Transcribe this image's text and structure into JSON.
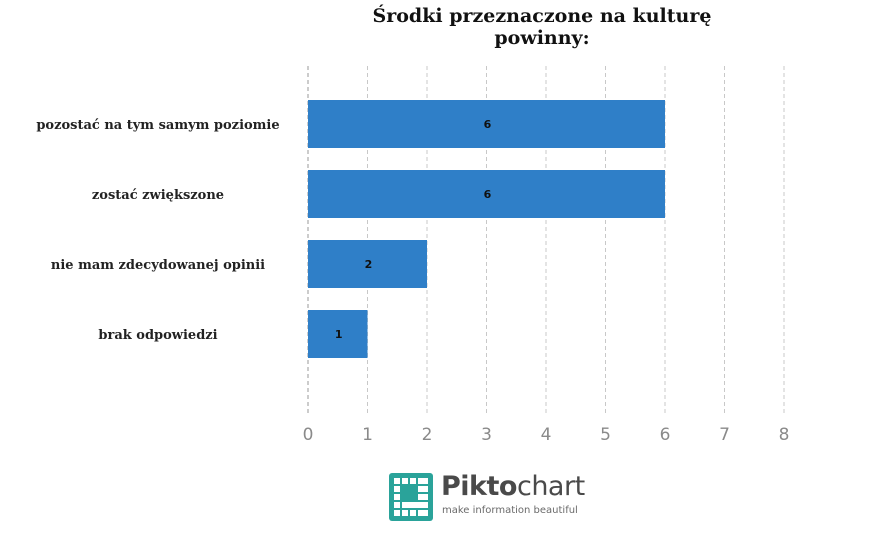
{
  "chart_data": {
    "type": "bar",
    "orientation": "horizontal",
    "title": "Środki przeznaczone na kulturę powinny:",
    "title_lines": [
      "Środki przeznaczone na kulturę",
      "powinny:"
    ],
    "categories": [
      "pozostać na tym samym poziomie",
      "zostać zwiększone",
      "nie mam zdecydowanej opinii",
      "brak odpowiedzi"
    ],
    "values": [
      6,
      6,
      2,
      1
    ],
    "xlim": [
      0,
      8
    ],
    "ticks": [
      "0",
      "1",
      "2",
      "3",
      "4",
      "5",
      "6",
      "7",
      "8"
    ],
    "grid": "vertical-dashed",
    "bar_color": "#2f7fc8"
  },
  "logo": {
    "name": "piktochart-logo-icon",
    "word_bold": "Pikto",
    "word_light": "chart",
    "tagline": "make information beautiful",
    "colors": {
      "icon": "#2aa39a",
      "text": "#4a4a4a"
    }
  }
}
